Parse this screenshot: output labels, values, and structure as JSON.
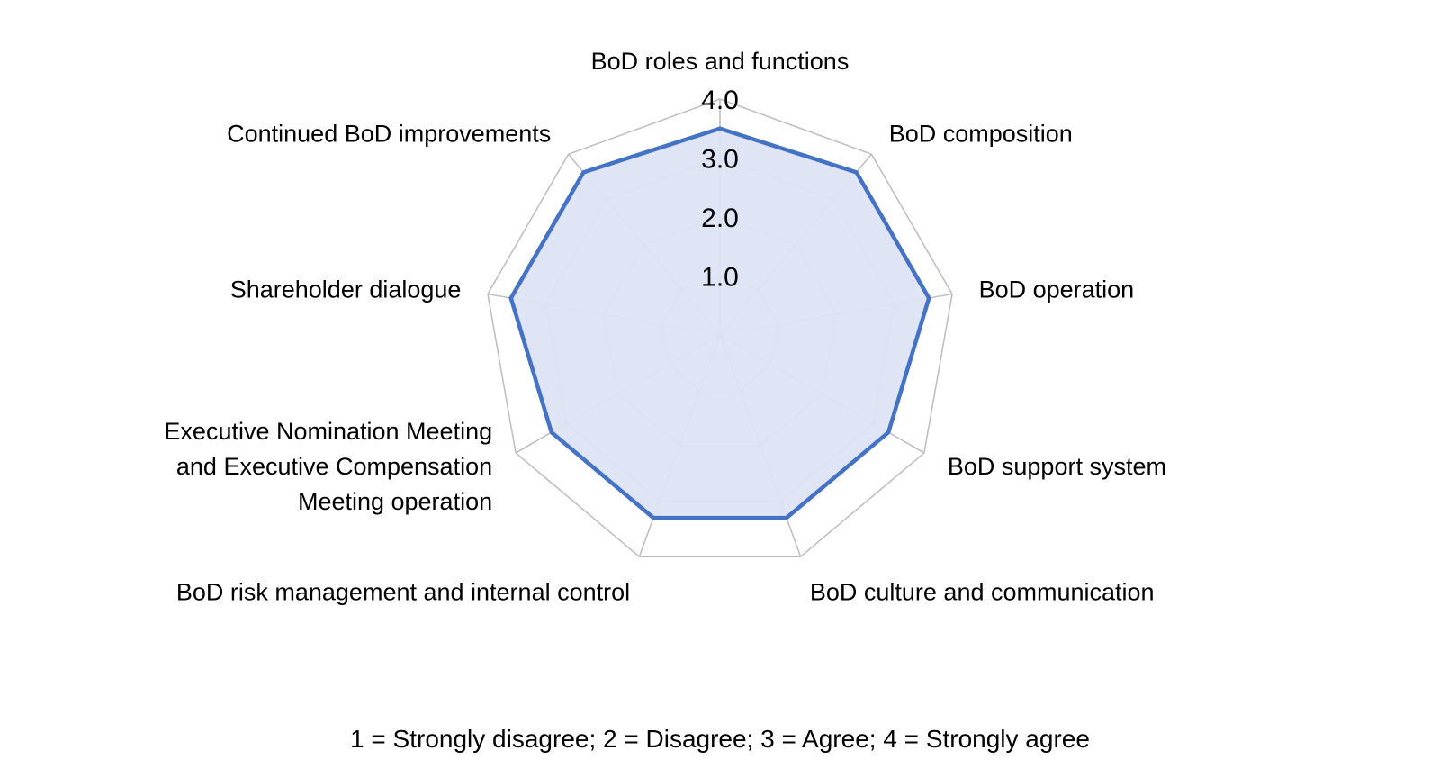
{
  "chart_data": {
    "type": "radar",
    "title": "",
    "axes": [
      "BoD roles and functions",
      "BoD composition",
      "BoD operation",
      "BoD support system",
      "BoD culture and communication",
      "BoD risk management and internal control",
      "Executive Nomination Meeting and Executive Compensation Meeting operation",
      "Shareholder dialogue",
      "Continued BoD improvements"
    ],
    "axis_labels_display": [
      [
        "BoD roles and functions"
      ],
      [
        "BoD composition"
      ],
      [
        "BoD operation"
      ],
      [
        "BoD support system"
      ],
      [
        "BoD culture and communication"
      ],
      [
        "BoD risk management and internal control"
      ],
      [
        "Executive Nomination Meeting",
        "and Executive Compensation",
        "Meeting operation"
      ],
      [
        "Shareholder dialogue"
      ],
      [
        "Continued BoD improvements"
      ]
    ],
    "series": [
      {
        "values": [
          3.5,
          3.6,
          3.6,
          3.3,
          3.3,
          3.3,
          3.3,
          3.6,
          3.6
        ],
        "color": "#4472c4",
        "fill": "#dde4f4"
      }
    ],
    "range": [
      0,
      4
    ],
    "ticks": [
      1.0,
      2.0,
      3.0,
      4.0
    ],
    "tick_labels": [
      "1.0",
      "2.0",
      "3.0",
      "4.0"
    ],
    "grid": true,
    "legend": "none",
    "scale_note": "1 = Strongly disagree;   2 = Disagree;   3 = Agree;   4 = Strongly agree"
  },
  "colors": {
    "grid": "#c0c0c0",
    "series_line": "#4472c4",
    "series_fill": "#dde4f4"
  }
}
